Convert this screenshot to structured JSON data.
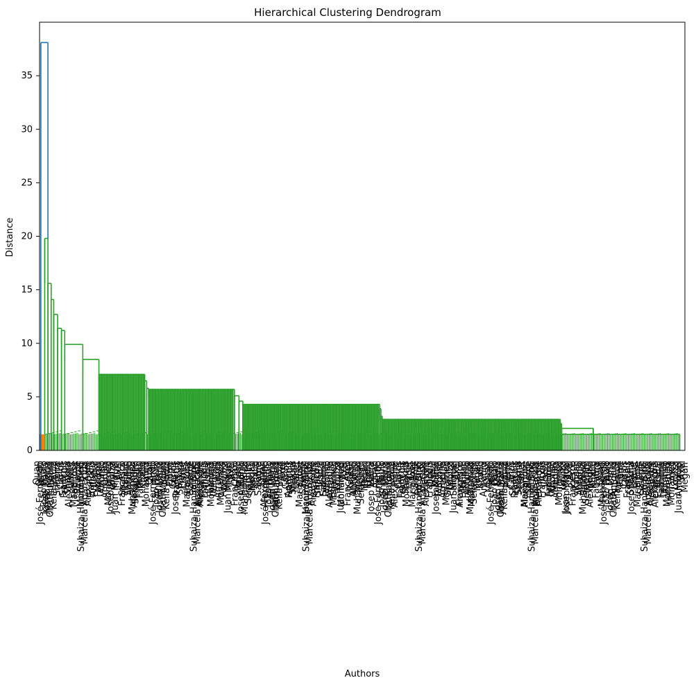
{
  "chart_data": {
    "type": "dendrogram",
    "title": "Hierarchical Clustering Dendrogram",
    "xlabel": "Authors",
    "ylabel": "Distance",
    "ylim": [
      0,
      40
    ],
    "yticks": [
      0,
      5,
      10,
      15,
      20,
      25,
      30,
      35
    ],
    "grid": false,
    "colors": {
      "root": "#1f77b4",
      "small_cluster": "#ff7f0e",
      "main_cluster": "#2ca02c",
      "text": "#000000",
      "axis": "#000000"
    },
    "clusters": [
      {
        "color_key": "small_cluster",
        "leaf_fraction": 0.008,
        "merge_distance": 1.5
      },
      {
        "color_key": "main_cluster",
        "leaf_fraction": 0.992,
        "merge_distance": 19.8
      }
    ],
    "root_merge_distance": 38.1,
    "main_cluster_staircase": [
      {
        "distance": 19.8,
        "start": 0.008,
        "end": 0.013
      },
      {
        "distance": 15.6,
        "start": 0.013,
        "end": 0.018
      },
      {
        "distance": 14.1,
        "start": 0.018,
        "end": 0.022
      },
      {
        "distance": 12.7,
        "start": 0.022,
        "end": 0.028
      },
      {
        "distance": 11.4,
        "start": 0.028,
        "end": 0.034
      },
      {
        "distance": 11.2,
        "start": 0.034,
        "end": 0.039
      },
      {
        "distance": 9.9,
        "start": 0.039,
        "end": 0.067
      },
      {
        "distance": 8.5,
        "start": 0.067,
        "end": 0.092
      },
      {
        "distance": 7.1,
        "start": 0.092,
        "end": 0.163
      },
      {
        "distance": 6.5,
        "start": 0.163,
        "end": 0.166
      },
      {
        "distance": 5.8,
        "start": 0.166,
        "end": 0.169
      },
      {
        "distance": 5.7,
        "start": 0.169,
        "end": 0.302
      },
      {
        "distance": 5.1,
        "start": 0.302,
        "end": 0.309
      },
      {
        "distance": 4.6,
        "start": 0.309,
        "end": 0.315
      },
      {
        "distance": 4.3,
        "start": 0.315,
        "end": 0.527
      },
      {
        "distance": 3.9,
        "start": 0.527,
        "end": 0.529
      },
      {
        "distance": 3.2,
        "start": 0.529,
        "end": 0.531
      },
      {
        "distance": 2.9,
        "start": 0.531,
        "end": 0.807
      },
      {
        "distance": 2.5,
        "start": 0.807,
        "end": 0.809
      },
      {
        "distance": 2.05,
        "start": 0.809,
        "end": 0.858
      },
      {
        "distance": 1.5,
        "start": 0.809,
        "end": 0.992
      }
    ],
    "leaf_labels": [
      "Quan",
      "José-Fernando",
      "João Paulo",
      "Josep Maria",
      "Chathurdara",
      "Keila Paula",
      "Pierre",
      "Carlos",
      "François",
      "Shakira",
      "Lianet",
      "Maria Jose",
      "Salomé",
      "Suhaiza Hanim Binti",
      "Marcela Aparecida",
      "Alexandre",
      "François",
      "Vishal",
      "Fathima",
      "Alfonso",
      "Arrenilla",
      "Mohamed",
      "Louiza",
      "Juan Miguel",
      "Axel",
      "Francesco",
      "Rajesh",
      "Antonio",
      "Muhammad",
      "Seraphim",
      "Megan",
      "Khalid",
      "Laura"
    ]
  }
}
